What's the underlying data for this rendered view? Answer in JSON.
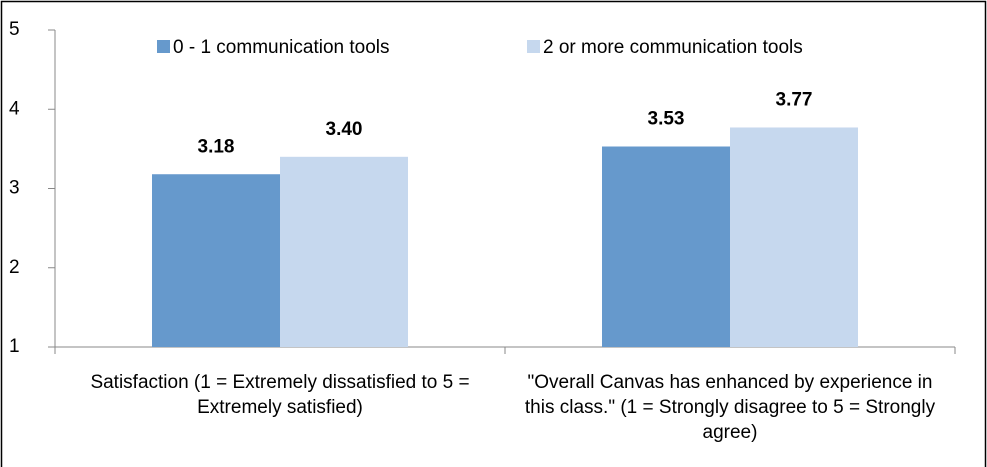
{
  "chart_data": {
    "type": "bar",
    "categories": [
      "Satisfaction (1 = Extremely dissatisfied to 5 = Extremely satisfied)",
      "\"Overall Canvas has enhanced by experience in this class.\" (1 = Strongly disagree to 5 = Strongly agree)"
    ],
    "series": [
      {
        "name": "0 - 1 communication tools",
        "color": "#6699cc",
        "values": [
          3.18,
          3.53
        ],
        "value_labels": [
          "3.18",
          "3.53"
        ]
      },
      {
        "name": "2 or more communication tools",
        "color": "#c6d8ee",
        "values": [
          3.4,
          3.77
        ],
        "value_labels": [
          "3.40",
          "3.77"
        ]
      }
    ],
    "ylim": [
      1,
      5
    ],
    "yticks": [
      1,
      2,
      3,
      4,
      5
    ],
    "grid": false,
    "legend": "top"
  }
}
